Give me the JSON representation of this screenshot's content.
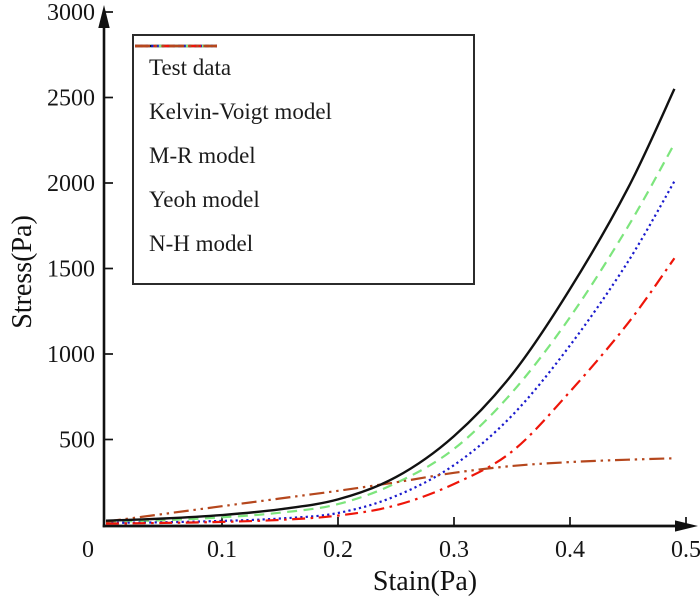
{
  "chart_data": {
    "type": "line",
    "title": "",
    "xlabel": "Stain(Pa)",
    "ylabel": "Stress(Pa)",
    "xlim": [
      0,
      0.5
    ],
    "ylim": [
      0,
      3000
    ],
    "x_ticks": [
      "0",
      "0.1",
      "0.2",
      "0.3",
      "0.4",
      "0.5"
    ],
    "y_ticks": [
      "500",
      "1000",
      "1500",
      "2000",
      "2500",
      "3000"
    ],
    "grid": false,
    "legend_position": "upper-left",
    "axis_color": "#111111",
    "x": [
      0,
      0.05,
      0.1,
      0.15,
      0.2,
      0.25,
      0.3,
      0.35,
      0.4,
      0.45,
      0.49
    ],
    "series": [
      {
        "name": "Test data",
        "color": "#111111",
        "style": "solid",
        "values": [
          25,
          38,
          58,
          92,
          150,
          280,
          520,
          880,
          1380,
          1970,
          2550
        ]
      },
      {
        "name": "Kelvin-Voigt model",
        "color": "#7de57d",
        "style": "dashed",
        "values": [
          18,
          28,
          45,
          72,
          122,
          245,
          445,
          775,
          1215,
          1745,
          2230
        ]
      },
      {
        "name": "M-R model",
        "color": "#1a1acd",
        "style": "dotted",
        "values": [
          12,
          16,
          24,
          38,
          70,
          170,
          350,
          640,
          1050,
          1540,
          2010
        ]
      },
      {
        "name": "Yeoh model",
        "color": "#ee1509",
        "style": "dashdot",
        "values": [
          8,
          12,
          18,
          30,
          55,
          115,
          240,
          430,
          780,
          1180,
          1560
        ]
      },
      {
        "name": "N-H model",
        "color": "#b5471d",
        "style": "dashdotdot",
        "values": [
          20,
          65,
          110,
          155,
          200,
          250,
          305,
          345,
          368,
          382,
          390
        ]
      }
    ]
  }
}
